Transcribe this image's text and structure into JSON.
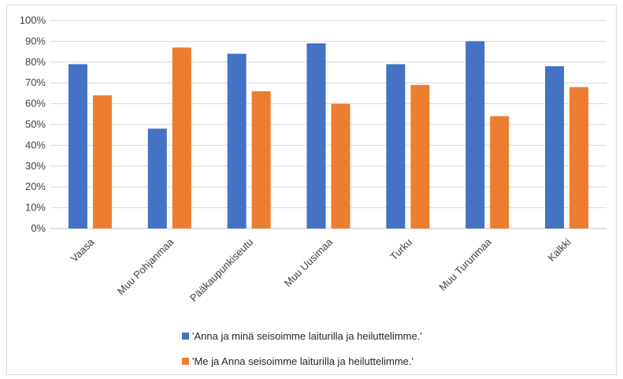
{
  "chart_data": {
    "type": "bar",
    "categories": [
      "Vaasa",
      "Muu Pohjanmaa",
      "Pääkaupunkiseutu",
      "Muu Uusimaa",
      "Turku",
      "Muu Turunmaa",
      "Kalkki"
    ],
    "series": [
      {
        "name": "'Anna ja minä seisoimme laiturilla ja heiluttelimme.'",
        "color": "#4472c4",
        "values": [
          79,
          48,
          84,
          89,
          79,
          90,
          78
        ]
      },
      {
        "name": "'Me ja Anna seisoimme laiturilla ja heiluttelimme.'",
        "color": "#ed7d31",
        "values": [
          64,
          87,
          66,
          60,
          69,
          54,
          68
        ]
      }
    ],
    "yticks": [
      "0%",
      "10%",
      "20%",
      "30%",
      "40%",
      "50%",
      "60%",
      "70%",
      "80%",
      "90%",
      "100%"
    ],
    "ylim": [
      0,
      100
    ],
    "grid": true,
    "legend_position": "bottom"
  }
}
